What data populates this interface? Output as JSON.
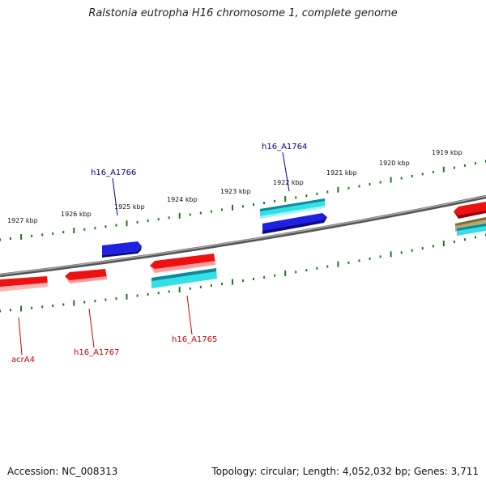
{
  "title": "Ralstonia eutropha H16 chromosome 1, complete genome",
  "footer": {
    "accession": "Accession: NC_008313",
    "summary": "Topology: circular; Length: 4,052,032 bp; Genes: 3,711"
  },
  "colors": {
    "backbone": "#888888",
    "tick": "#1a7a1a",
    "cds_forward": "#2020e0",
    "cds_reverse": "#ee1111",
    "rna": "#33e0e6",
    "other": "#b8a878",
    "label_forward": "#000088",
    "label_reverse": "#cc0000"
  },
  "ticks_outer": [
    {
      "label": "1927 kbp"
    },
    {
      "label": "1926 kbp"
    },
    {
      "label": "1925 kbp"
    },
    {
      "label": "1924 kbp"
    },
    {
      "label": "1923 kbp"
    },
    {
      "label": "1922 kbp"
    },
    {
      "label": "1921 kbp"
    },
    {
      "label": "1920 kbp"
    },
    {
      "label": "1919 kbp"
    }
  ],
  "genes": [
    {
      "id": "h16_A1766",
      "label": "h16_A1766",
      "strand": "forward"
    },
    {
      "id": "h16_A1764",
      "label": "h16_A1764",
      "strand": "forward"
    },
    {
      "id": "acrA4",
      "label": "acrA4",
      "strand": "reverse"
    },
    {
      "id": "h16_A1767",
      "label": "h16_A1767",
      "strand": "reverse"
    },
    {
      "id": "h16_A1765",
      "label": "h16_A1765",
      "strand": "reverse"
    }
  ]
}
